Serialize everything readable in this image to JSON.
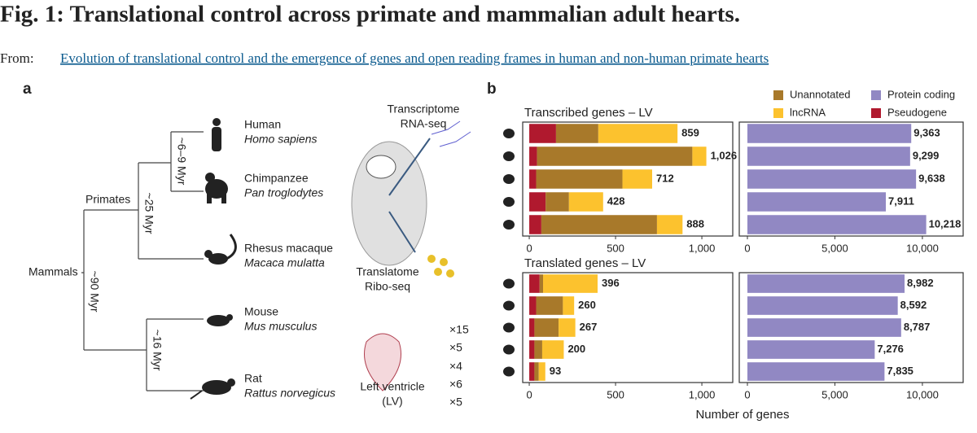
{
  "header": {
    "title": "Fig. 1: Translational control across primate and mammalian adult hearts.",
    "from": "From:",
    "link": "Evolution of translational control and the emergence of genes and open reading frames in human and non-human primate hearts"
  },
  "panel_a": {
    "label": "a",
    "species": [
      {
        "common": "Human",
        "latin": "Homo sapiens"
      },
      {
        "common": "Chimpanzee",
        "latin": "Pan troglodytes"
      },
      {
        "common": "Rhesus macaque",
        "latin": "Macaca mulatta"
      },
      {
        "common": "Mouse",
        "latin": "Mus musculus"
      },
      {
        "common": "Rat",
        "latin": "Rattus norvegicus"
      }
    ],
    "clades": [
      "Primates",
      "Mammals"
    ],
    "divergence": [
      "~6–9 Myr",
      "~25 Myr",
      "~90 Myr",
      "~16 Myr"
    ],
    "cell": {
      "transcriptome": "Transcriptome",
      "rna_seq": "RNA-seq",
      "translatome": "Translatome",
      "ribo_seq": "Ribo-seq",
      "tissue": "Left ventricle",
      "tissue_abbr": "(LV)"
    },
    "sample_counts": [
      "×15",
      "×5",
      "×4",
      "×6",
      "×5"
    ]
  },
  "panel_b": {
    "label": "b",
    "xlabel": "Number of genes"
  },
  "chart_data": [
    {
      "type": "bar",
      "orientation": "horizontal",
      "stacked": true,
      "title": "Transcribed genes – LV",
      "series": [
        {
          "name": "Pseudogene",
          "color": "#b0192e",
          "values": [
            155,
            45,
            40,
            95,
            70
          ]
        },
        {
          "name": "Unannotated",
          "color": "#a8792a",
          "values": [
            245,
            900,
            500,
            135,
            670
          ]
        },
        {
          "name": "lncRNA",
          "color": "#fcc22e",
          "values": [
            459,
            81,
            172,
            198,
            148
          ]
        }
      ],
      "totals": [
        859,
        1026,
        712,
        428,
        888
      ],
      "total_labels": [
        "859",
        "1,026",
        "712",
        "428",
        "888"
      ],
      "xlim": [
        -38,
        1179
      ],
      "xticks": [
        0,
        500,
        {
          "value": 1000,
          "label": "1,000"
        }
      ]
    },
    {
      "type": "bar",
      "orientation": "horizontal",
      "series": [
        {
          "name": "Protein coding",
          "color": "#9188c3",
          "values": [
            9363,
            9299,
            9638,
            7911,
            10218
          ]
        }
      ],
      "value_labels": [
        "9,363",
        "9,299",
        "9,638",
        "7,911",
        "10,218"
      ],
      "xlim": [
        -465,
        12330
      ],
      "xticks": [
        0,
        {
          "value": 5000,
          "label": "5,000"
        },
        {
          "value": 10000,
          "label": "10,000"
        }
      ]
    },
    {
      "type": "bar",
      "orientation": "horizontal",
      "stacked": true,
      "title": "Translated genes – LV",
      "series": [
        {
          "color": "#b0192e",
          "values": [
            60,
            40,
            30,
            30,
            30
          ]
        },
        {
          "color": "#a8792a",
          "values": [
            20,
            155,
            140,
            45,
            25
          ]
        },
        {
          "color": "#fcc22e",
          "values": [
            316,
            65,
            97,
            125,
            38
          ]
        }
      ],
      "totals": [
        396,
        260,
        267,
        200,
        93
      ],
      "xlim": [
        -38,
        1179
      ],
      "xticks": [
        0,
        500,
        {
          "value": 1000,
          "label": "1,000"
        }
      ]
    },
    {
      "type": "bar",
      "orientation": "horizontal",
      "series": [
        {
          "color": "#9188c3",
          "values": [
            8982,
            8592,
            8787,
            7276,
            7835
          ]
        }
      ],
      "value_labels": [
        "8,982",
        "8,592",
        "8,787",
        "7,276",
        "7,835"
      ],
      "xlim": [
        -465,
        12330
      ],
      "xticks": [
        0,
        {
          "value": 5000,
          "label": "5,000"
        },
        {
          "value": 10000,
          "label": "10,000"
        }
      ]
    }
  ]
}
